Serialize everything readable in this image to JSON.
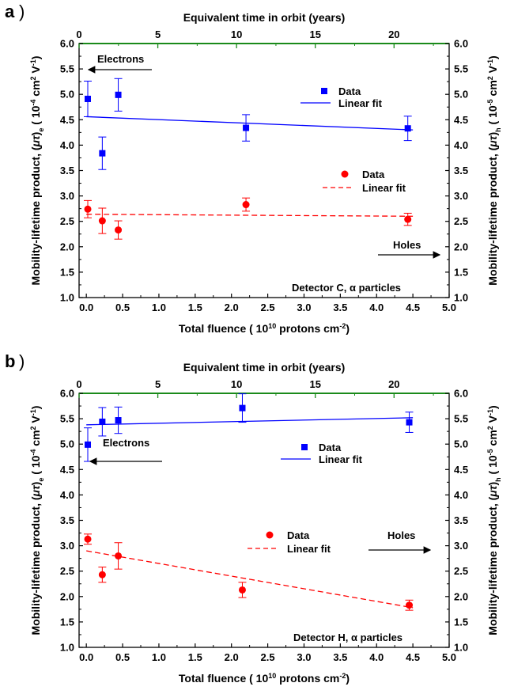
{
  "chart_data": [
    {
      "panel_label": "a",
      "type": "scatter",
      "xlabel": "Total fluence ( 10",
      "xlabel_sup": "10",
      "xlabel_tail": " protons cm",
      "xlabel_tail_sup": "-2",
      "xlabel_end": ")",
      "top_xlabel": "Equivalent time in orbit (years)",
      "ylabel_left": "Mobility-lifetime product, (μτ)e ( 10-4 cm2 V-1)",
      "ylabel_right": "Mobility-lifetime product, (μτ)h ( 10-5 cm2 V-1)",
      "xlim": [
        -0.1,
        5.0
      ],
      "ylim": [
        1.0,
        6.0
      ],
      "top_xlim": [
        0,
        23.5
      ],
      "x_ticks": [
        "0.0",
        "0.5",
        "1.0",
        "1.5",
        "2.0",
        "2.5",
        "3.0",
        "3.5",
        "4.0",
        "4.5",
        "5.0"
      ],
      "y_ticks": [
        "1.0",
        "1.5",
        "2.0",
        "2.5",
        "3.0",
        "3.5",
        "4.0",
        "4.5",
        "5.0",
        "5.5",
        "6.0"
      ],
      "top_ticks": [
        "0",
        "5",
        "10",
        "15",
        "20"
      ],
      "annotation": "Detector C,  α  particles",
      "series": [
        {
          "name": "Data",
          "group": "electrons",
          "marker": "square",
          "color": "#0000ff",
          "x": [
            0.02,
            0.22,
            0.44,
            2.2,
            4.43
          ],
          "y": [
            4.91,
            3.84,
            4.99,
            4.34,
            4.33
          ],
          "err": [
            0.35,
            0.32,
            0.32,
            0.26,
            0.24
          ]
        },
        {
          "name": "Linear fit",
          "group": "electrons",
          "style": "solid",
          "color": "#0000ff",
          "x": [
            0.0,
            4.5
          ],
          "y": [
            4.56,
            4.3
          ]
        },
        {
          "name": "Data",
          "group": "holes",
          "marker": "circle",
          "color": "#ff0000",
          "x": [
            0.02,
            0.22,
            0.44,
            2.2,
            4.43
          ],
          "y": [
            2.74,
            2.51,
            2.33,
            2.83,
            2.54
          ],
          "err": [
            0.17,
            0.25,
            0.18,
            0.13,
            0.12
          ]
        },
        {
          "name": "Linear fit",
          "group": "holes",
          "style": "dashed",
          "color": "#ff0000",
          "x": [
            0.0,
            4.5
          ],
          "y": [
            2.64,
            2.6
          ]
        }
      ],
      "arrow_labels": {
        "electrons": "Electrons",
        "holes": "Holes"
      }
    },
    {
      "panel_label": "b",
      "type": "scatter",
      "xlabel": "Total fluence ( 10",
      "xlabel_sup": "10",
      "xlabel_tail": " protons cm",
      "xlabel_tail_sup": "-2",
      "xlabel_end": ")",
      "top_xlabel": "Equivalent time in orbit (years)",
      "ylabel_left": "Mobility-lifetime product, (μτ)e ( 10-4 cm2 V-1)",
      "ylabel_right": "Mobility-lifetime product, (μτ)h ( 10-5 cm2 V-1)",
      "xlim": [
        -0.1,
        5.0
      ],
      "ylim": [
        1.0,
        6.0
      ],
      "top_xlim": [
        0,
        23.5
      ],
      "x_ticks": [
        "0.0",
        "0.5",
        "1.0",
        "1.5",
        "2.0",
        "2.5",
        "3.0",
        "3.5",
        "4.0",
        "4.5",
        "5.0"
      ],
      "y_ticks": [
        "1.0",
        "1.5",
        "2.0",
        "2.5",
        "3.0",
        "3.5",
        "4.0",
        "4.5",
        "5.0",
        "5.5",
        "6.0"
      ],
      "top_ticks": [
        "0",
        "5",
        "10",
        "15",
        "20"
      ],
      "annotation": "Detector H,  α  particles",
      "series": [
        {
          "name": "Data",
          "group": "electrons",
          "marker": "square",
          "color": "#0000ff",
          "x": [
            0.02,
            0.22,
            0.44,
            2.15,
            4.45
          ],
          "y": [
            4.99,
            5.44,
            5.47,
            5.71,
            5.43
          ],
          "err": [
            0.33,
            0.28,
            0.26,
            0.28,
            0.2
          ]
        },
        {
          "name": "Linear fit",
          "group": "electrons",
          "style": "solid",
          "color": "#0000ff",
          "x": [
            0.0,
            4.5
          ],
          "y": [
            5.38,
            5.52
          ]
        },
        {
          "name": "Data",
          "group": "holes",
          "marker": "circle",
          "color": "#ff0000",
          "x": [
            0.02,
            0.22,
            0.44,
            2.15,
            4.45
          ],
          "y": [
            3.13,
            2.43,
            2.8,
            2.13,
            1.83
          ],
          "err": [
            0.1,
            0.15,
            0.26,
            0.15,
            0.1
          ]
        },
        {
          "name": "Linear fit",
          "group": "holes",
          "style": "dashed",
          "color": "#ff0000",
          "x": [
            0.0,
            4.5
          ],
          "y": [
            2.9,
            1.78
          ]
        }
      ],
      "arrow_labels": {
        "electrons": "Electrons",
        "holes": "Holes"
      }
    }
  ]
}
